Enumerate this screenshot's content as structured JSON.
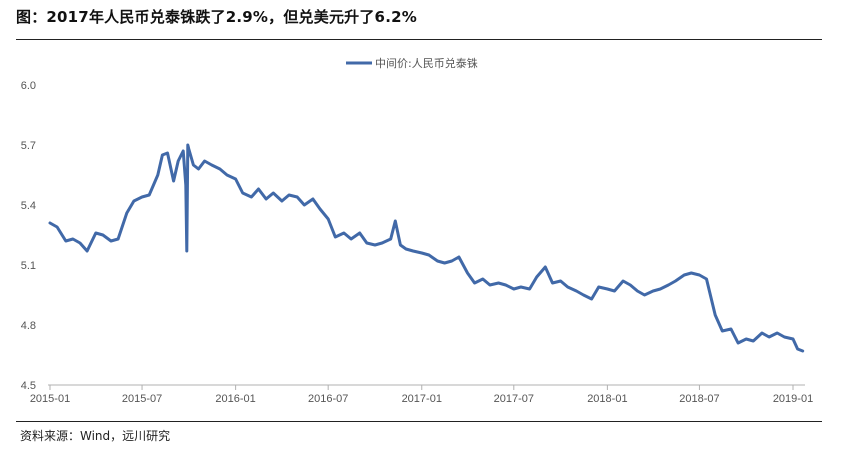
{
  "figure": {
    "title": "图：2017年人民币兑泰铢跌了2.9%，但兑美元升了6.2%",
    "source": "资料来源：Wind，远川研究"
  },
  "chart_data": {
    "type": "line",
    "title": "",
    "xlabel": "",
    "ylabel": "",
    "ylim": [
      4.5,
      6.0
    ],
    "yticks": [
      "6.0",
      "5.7",
      "5.4",
      "5.1",
      "4.8",
      "4.5"
    ],
    "xticks": [
      "2015-01",
      "2015-07",
      "2016-01",
      "2016-07",
      "2017-01",
      "2017-07",
      "2018-01",
      "2018-07",
      "2019-01"
    ],
    "grid": false,
    "legend_position": "top-center",
    "color": "#4169a8",
    "series": [
      {
        "name": "中间价:人民币兑泰铢",
        "x": [
          "2015-01",
          "2015-01-15",
          "2015-02",
          "2015-02-15",
          "2015-03",
          "2015-03-15",
          "2015-04",
          "2015-04-15",
          "2015-05",
          "2015-05-15",
          "2015-06",
          "2015-06-15",
          "2015-07",
          "2015-07-15",
          "2015-08",
          "2015-08-10",
          "2015-08-20",
          "2015-09",
          "2015-09-10",
          "2015-09-20",
          "2015-09-25",
          "2015-09-27",
          "2015-09-29",
          "2015-10",
          "2015-10-10",
          "2015-10-20",
          "2015-11",
          "2015-11-15",
          "2015-12",
          "2015-12-15",
          "2016-01",
          "2016-01-15",
          "2016-02",
          "2016-02-15",
          "2016-03",
          "2016-03-15",
          "2016-04",
          "2016-04-15",
          "2016-05",
          "2016-05-15",
          "2016-06",
          "2016-06-15",
          "2016-07",
          "2016-07-15",
          "2016-08",
          "2016-08-15",
          "2016-09",
          "2016-09-15",
          "2016-10",
          "2016-10-15",
          "2016-11",
          "2016-11-10",
          "2016-11-20",
          "2016-12",
          "2016-12-15",
          "2017-01",
          "2017-01-15",
          "2017-02",
          "2017-02-15",
          "2017-03",
          "2017-03-15",
          "2017-04",
          "2017-04-15",
          "2017-05",
          "2017-05-15",
          "2017-06",
          "2017-06-15",
          "2017-07",
          "2017-07-15",
          "2017-08",
          "2017-08-15",
          "2017-09",
          "2017-09-15",
          "2017-10",
          "2017-10-15",
          "2017-11",
          "2017-11-15",
          "2017-12",
          "2017-12-15",
          "2018-01",
          "2018-01-15",
          "2018-02",
          "2018-02-15",
          "2018-03",
          "2018-03-15",
          "2018-04",
          "2018-04-15",
          "2018-05",
          "2018-05-15",
          "2018-06",
          "2018-06-15",
          "2018-07",
          "2018-07-15",
          "2018-08",
          "2018-08-15",
          "2018-09",
          "2018-09-15",
          "2018-10",
          "2018-10-15",
          "2018-11",
          "2018-11-15",
          "2018-12",
          "2018-12-15",
          "2019-01",
          "2019-01-10",
          "2019-01-20"
        ],
        "values": [
          5.31,
          5.29,
          5.22,
          5.23,
          5.21,
          5.17,
          5.26,
          5.25,
          5.22,
          5.23,
          5.36,
          5.42,
          5.44,
          5.45,
          5.55,
          5.65,
          5.66,
          5.52,
          5.62,
          5.67,
          5.5,
          5.17,
          5.7,
          5.68,
          5.6,
          5.58,
          5.62,
          5.6,
          5.58,
          5.55,
          5.53,
          5.46,
          5.44,
          5.48,
          5.43,
          5.46,
          5.42,
          5.45,
          5.44,
          5.4,
          5.43,
          5.38,
          5.33,
          5.24,
          5.26,
          5.23,
          5.26,
          5.21,
          5.2,
          5.21,
          5.23,
          5.32,
          5.2,
          5.18,
          5.17,
          5.16,
          5.15,
          5.12,
          5.11,
          5.12,
          5.14,
          5.06,
          5.01,
          5.03,
          5.0,
          5.01,
          5.0,
          4.98,
          4.99,
          4.98,
          5.04,
          5.09,
          5.01,
          5.02,
          4.99,
          4.97,
          4.95,
          4.93,
          4.99,
          4.98,
          4.97,
          5.02,
          5.0,
          4.97,
          4.95,
          4.97,
          4.98,
          5.0,
          5.02,
          5.05,
          5.06,
          5.05,
          5.03,
          4.85,
          4.77,
          4.78,
          4.71,
          4.73,
          4.72,
          4.76,
          4.74,
          4.76,
          4.74,
          4.73,
          4.68,
          4.67
        ]
      }
    ]
  }
}
